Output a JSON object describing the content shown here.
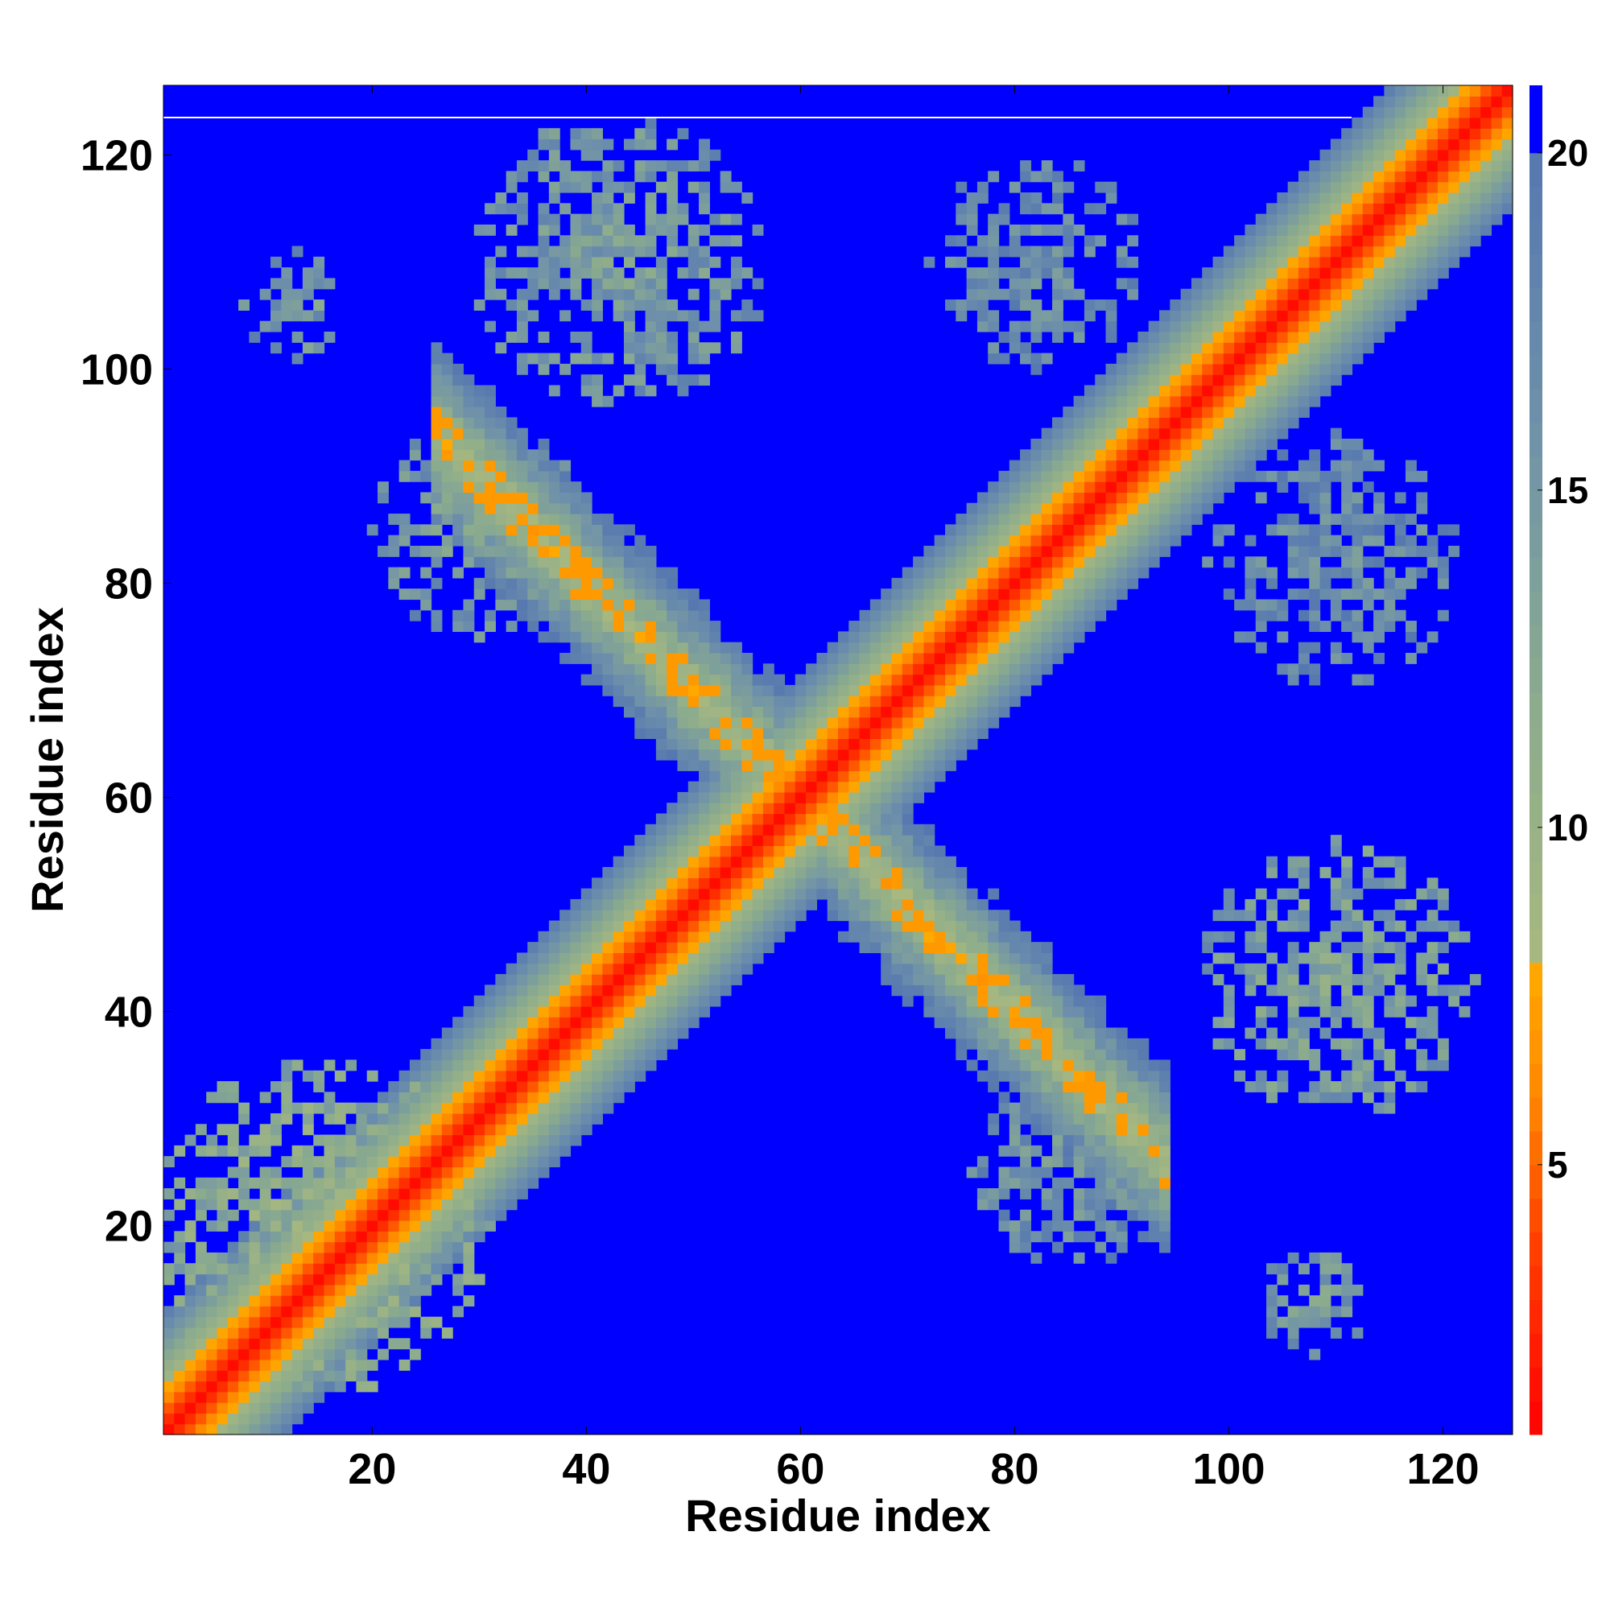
{
  "chart_data": {
    "type": "heatmap",
    "title": "",
    "xlabel": "Residue index",
    "ylabel": "Residue index",
    "n_residues": 126,
    "xlim": [
      1,
      126
    ],
    "ylim": [
      1,
      126
    ],
    "x_ticks": [
      20,
      40,
      60,
      80,
      100,
      120
    ],
    "y_ticks": [
      20,
      40,
      60,
      80,
      100,
      120
    ],
    "colorbar": {
      "range": [
        1,
        21
      ],
      "ticks": [
        5,
        10,
        15,
        20
      ],
      "stops": [
        {
          "value": 1,
          "color": "#ff0000"
        },
        {
          "value": 4,
          "color": "#ff4400"
        },
        {
          "value": 6,
          "color": "#ff8800"
        },
        {
          "value": 8,
          "color": "#ffaa00"
        },
        {
          "value": 8.01,
          "color": "#a8b87f"
        },
        {
          "value": 12,
          "color": "#8aab8e"
        },
        {
          "value": 16,
          "color": "#6f91aa"
        },
        {
          "value": 20,
          "color": "#5577b0"
        },
        {
          "value": 20.01,
          "color": "#0000ff"
        },
        {
          "value": 21,
          "color": "#0000ff"
        }
      ],
      "background_color": "#0000ff"
    },
    "features": {
      "main_diagonal": {
        "from": 1,
        "to": 126,
        "core_value": 1.5
      },
      "antiparallel_band": {
        "from": [
          28,
          92
        ],
        "to": [
          92,
          28
        ],
        "core_value": 7,
        "width": 8
      },
      "contact_clusters": [
        {
          "center": [
            15,
            20
          ],
          "radius": 16,
          "value": 13
        },
        {
          "center": [
            30,
            85
          ],
          "radius": 10,
          "value": 16
        },
        {
          "center": [
            13,
            106
          ],
          "radius": 5,
          "value": 16
        },
        {
          "center": [
            43,
            110
          ],
          "radius": 14,
          "value": 16
        },
        {
          "center": [
            82,
            110
          ],
          "radius": 10,
          "value": 18
        },
        {
          "center": [
            110,
            82
          ],
          "radius": 12,
          "value": 18
        },
        {
          "center": [
            110,
            43
          ],
          "radius": 13,
          "value": 15
        },
        {
          "center": [
            85,
            25
          ],
          "radius": 9,
          "value": 17
        },
        {
          "center": [
            108,
            13
          ],
          "radius": 5,
          "value": 16
        }
      ]
    }
  }
}
